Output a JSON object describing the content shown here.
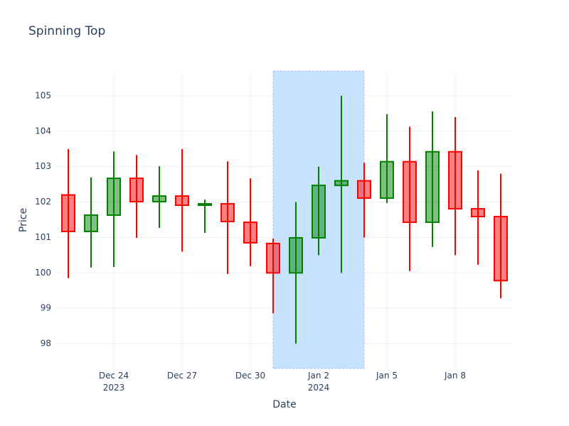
{
  "chart_data": {
    "type": "candlestick",
    "title": "Spinning Top",
    "xlabel": "Date",
    "ylabel": "Price",
    "x": [
      "2023-12-22",
      "2023-12-23",
      "2023-12-24",
      "2023-12-25",
      "2023-12-26",
      "2023-12-27",
      "2023-12-28",
      "2023-12-29",
      "2023-12-30",
      "2023-12-31",
      "2024-01-01",
      "2024-01-02",
      "2024-01-03",
      "2024-01-04",
      "2024-01-05",
      "2024-01-06",
      "2024-01-07",
      "2024-01-08",
      "2024-01-09",
      "2024-01-10"
    ],
    "open": [
      102.2,
      101.17,
      101.63,
      102.67,
      102.01,
      102.17,
      101.91,
      101.95,
      101.43,
      100.83,
      100.0,
      100.99,
      102.47,
      102.6,
      102.11,
      103.14,
      101.43,
      103.42,
      101.81,
      101.59
    ],
    "high": [
      103.5,
      102.7,
      103.43,
      103.33,
      103.01,
      103.5,
      102.07,
      103.15,
      102.67,
      100.97,
      102.0,
      103.0,
      105.0,
      103.11,
      104.48,
      104.13,
      104.56,
      104.4,
      102.89,
      102.8
    ],
    "low": [
      99.85,
      100.15,
      100.17,
      100.99,
      101.27,
      100.6,
      101.13,
      99.97,
      100.19,
      98.86,
      98.0,
      100.5,
      100.0,
      101.0,
      101.97,
      100.05,
      100.73,
      100.5,
      100.23,
      99.28
    ],
    "close": [
      101.17,
      101.63,
      102.67,
      102.01,
      102.17,
      101.91,
      101.95,
      101.45,
      100.85,
      100.0,
      100.99,
      102.47,
      102.6,
      102.11,
      103.14,
      101.43,
      103.42,
      101.81,
      101.59,
      99.78
    ],
    "increasing_color": "#008000",
    "decreasing_color": "#ff0000",
    "highlight": {
      "x0": "2023-12-31",
      "x1": "2024-01-04",
      "color": "#c7e2ff",
      "line_color": "#a3c4f0"
    },
    "xlim": [
      "2023-12-21T12:00:00Z",
      "2024-01-10T12:00:00Z"
    ],
    "xticks": [
      {
        "value": "2023-12-24",
        "label": "Dec 24\n2023"
      },
      {
        "value": "2023-12-27",
        "label": "Dec 27"
      },
      {
        "value": "2023-12-30",
        "label": "Dec 30"
      },
      {
        "value": "2024-01-02",
        "label": "Jan 2\n2024"
      },
      {
        "value": "2024-01-05",
        "label": "Jan 5"
      },
      {
        "value": "2024-01-08",
        "label": "Jan 8"
      }
    ],
    "ylim": [
      97.3,
      105.7
    ],
    "yticks": [
      98,
      99,
      100,
      101,
      102,
      103,
      104,
      105
    ],
    "grid": true
  }
}
